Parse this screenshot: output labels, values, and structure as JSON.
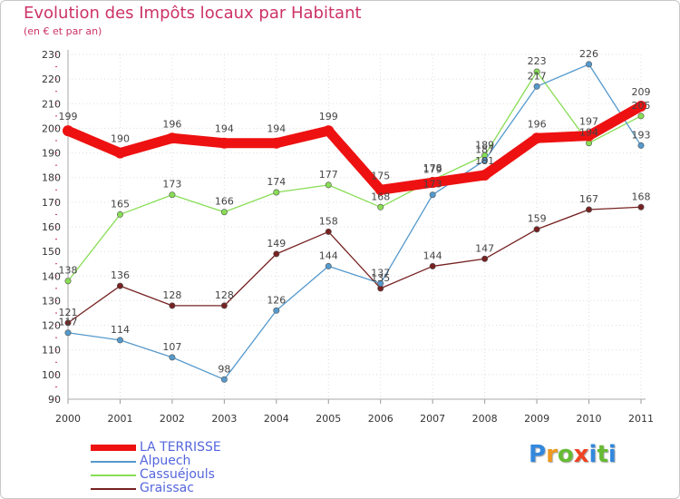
{
  "colors": {
    "title": "#cc3366",
    "legend_text": "#5566dd",
    "brand": [
      "#3388dd",
      "#ee9922",
      "#66bb33",
      "#ee4422",
      "#3388dd",
      "#66bb33"
    ]
  },
  "brand": {
    "text": "Proxiti",
    "letters": [
      "P",
      "r",
      "o",
      "x",
      "i",
      "t",
      "i"
    ]
  },
  "chart_data": {
    "type": "line",
    "title": "Evolution des Impôts locaux par Habitant",
    "subtitle": "(en € et par an)",
    "xlabel": "",
    "ylabel": "",
    "ylim": [
      90,
      230
    ],
    "y_ticks": [
      90,
      100,
      110,
      120,
      130,
      140,
      150,
      160,
      170,
      180,
      190,
      200,
      210,
      220,
      230
    ],
    "x": [
      "2000",
      "2001",
      "2002",
      "2003",
      "2004",
      "2005",
      "2006",
      "2007",
      "2008",
      "2009",
      "2010",
      "2011"
    ],
    "legend_position": "bottom-left",
    "series": [
      {
        "name": "LA TERRISSE",
        "color": "#ee1111",
        "values": [
          199,
          190,
          196,
          194,
          194,
          199,
          175,
          178,
          181,
          196,
          197,
          209
        ]
      },
      {
        "name": "Alpuech",
        "color": "#5599cc",
        "values": [
          117,
          114,
          107,
          98,
          126,
          144,
          137,
          173,
          187,
          217,
          226,
          193
        ]
      },
      {
        "name": "Cassuéjouls",
        "color": "#88dd55",
        "values": [
          138,
          165,
          173,
          166,
          174,
          177,
          168,
          179,
          189,
          223,
          194,
          205
        ]
      },
      {
        "name": "Graissac",
        "color": "#772222",
        "values": [
          121,
          136,
          128,
          128,
          149,
          158,
          135,
          144,
          147,
          159,
          167,
          168
        ]
      }
    ]
  }
}
